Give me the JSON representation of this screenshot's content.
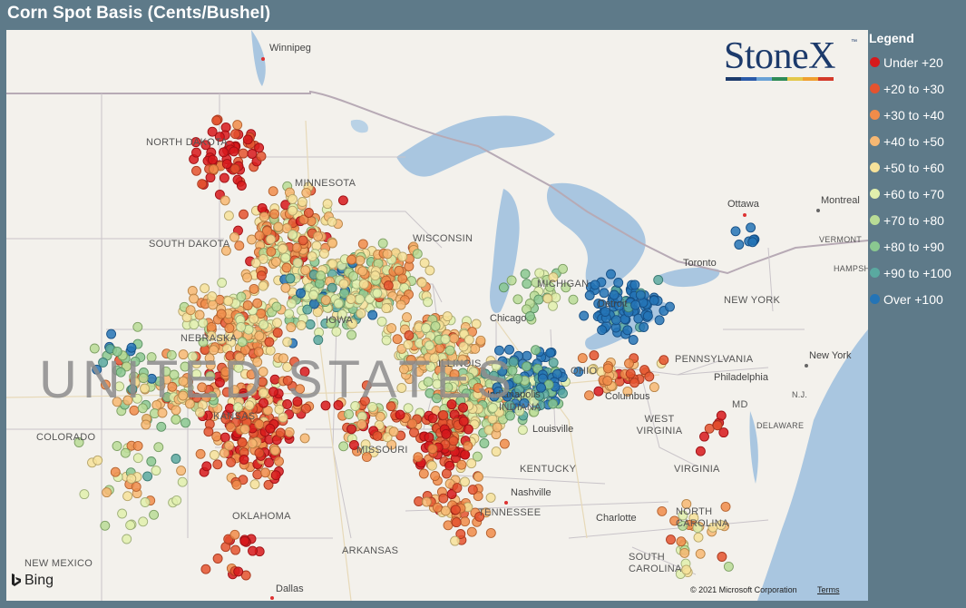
{
  "title": "Corn Spot Basis (Cents/Bushel)",
  "legend": {
    "title": "Legend",
    "items": [
      {
        "label": "Under +20",
        "color": "#d7191c"
      },
      {
        "label": "+20 to +30",
        "color": "#e4532f"
      },
      {
        "label": "+30 to +40",
        "color": "#f08c4a"
      },
      {
        "label": "+40 to +50",
        "color": "#f7b873"
      },
      {
        "label": "+50 to +60",
        "color": "#f6e29a"
      },
      {
        "label": "+60 to +70",
        "color": "#e1f0ad"
      },
      {
        "label": "+70 to +80",
        "color": "#b9dc96"
      },
      {
        "label": "+80 to +90",
        "color": "#8ac890"
      },
      {
        "label": "+90 to +100",
        "color": "#5aa9a0"
      },
      {
        "label": "Over +100",
        "color": "#2474b6"
      }
    ]
  },
  "map": {
    "country_label": "UNITED STATES",
    "states": [
      "NORTH DAKOTA",
      "MINNESOTA",
      "SOUTH DAKOTA",
      "WISCONSIN",
      "MICHIGAN",
      "NEBRASKA",
      "IOWA",
      "ILLINOIS",
      "INDIANA",
      "OHIO",
      "KANSAS",
      "COLORADO",
      "MISSOURI",
      "KENTUCKY",
      "WEST VIRGINIA",
      "VIRGINIA",
      "PENNSYLVANIA",
      "TENNESSEE",
      "OKLAHOMA",
      "ARKANSAS",
      "NEW MEXICO",
      "NORTH CAROLINA",
      "SOUTH CAROLINA",
      "NEW YORK",
      "MD",
      "DELAWARE",
      "N.J.",
      "VERMONT",
      "HAMPSHIRE"
    ],
    "cities": [
      "Winnipeg",
      "Ottawa",
      "Montreal",
      "Toronto",
      "Chicago",
      "Detroit",
      "Columbus",
      "Indianapolis",
      "Louisville",
      "Nashville",
      "Charlotte",
      "Philadelphia",
      "New York",
      "Dallas"
    ],
    "attribution": {
      "provider": "Bing",
      "copyright": "© 2021 Microsoft Corporation",
      "terms": "Terms"
    }
  },
  "brand": {
    "name": "StoneX",
    "tm": "™",
    "bar_colors": [
      "#1c3a6b",
      "#2a5aa8",
      "#6aa2d6",
      "#2e8b57",
      "#e3c84a",
      "#f0a030",
      "#d43a2a"
    ]
  }
}
